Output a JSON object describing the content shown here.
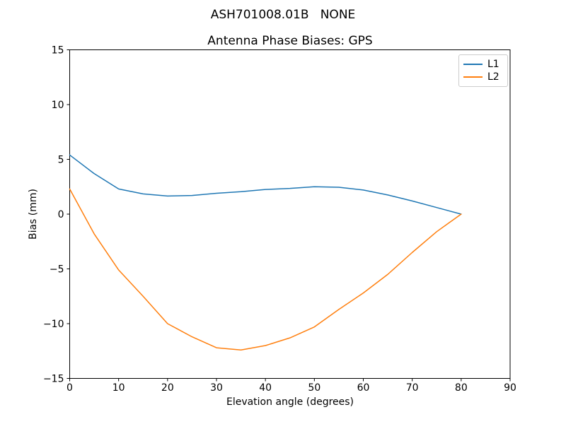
{
  "figure": {
    "suptitle": "ASH701008.01B   NONE",
    "background": "#ffffff"
  },
  "chart_data": {
    "type": "line",
    "title": "Antenna Phase Biases: GPS",
    "xlabel": "Elevation angle (degrees)",
    "ylabel": "Bias (mm)",
    "xlim": [
      0,
      90
    ],
    "ylim": [
      -15,
      15
    ],
    "xticks": [
      0,
      10,
      20,
      30,
      40,
      50,
      60,
      70,
      80,
      90
    ],
    "yticks": [
      -15,
      -10,
      -5,
      0,
      5,
      10,
      15
    ],
    "grid": false,
    "legend_position": "upper right",
    "x": [
      0,
      5,
      10,
      15,
      20,
      25,
      30,
      35,
      40,
      45,
      50,
      55,
      60,
      65,
      70,
      75,
      80
    ],
    "series": [
      {
        "name": "L1",
        "color": "#1f77b4",
        "values": [
          5.4,
          3.7,
          2.3,
          1.85,
          1.65,
          1.7,
          1.9,
          2.05,
          2.25,
          2.35,
          2.5,
          2.45,
          2.2,
          1.75,
          1.2,
          0.6,
          0.0
        ]
      },
      {
        "name": "L2",
        "color": "#ff7f0e",
        "values": [
          2.3,
          -1.8,
          -5.1,
          -7.5,
          -10.0,
          -11.2,
          -12.2,
          -12.4,
          -12.0,
          -11.3,
          -10.3,
          -8.7,
          -7.2,
          -5.5,
          -3.5,
          -1.6,
          0.0
        ]
      }
    ]
  }
}
